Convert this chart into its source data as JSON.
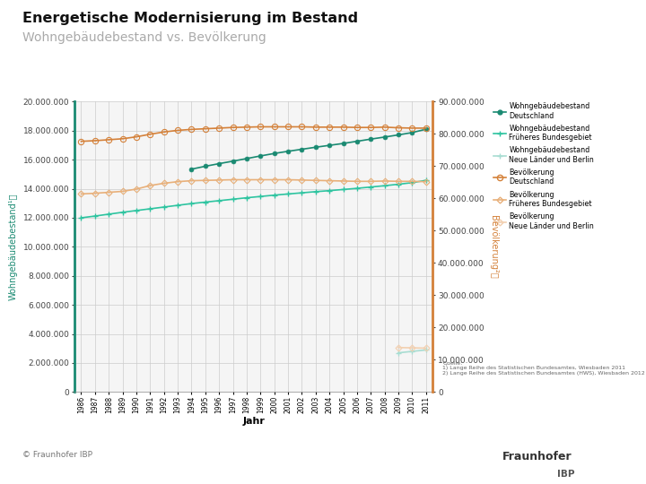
{
  "title1": "Energetische Modernisierung im Bestand",
  "title2": "Wohngebäudebestand vs. Bevölkerung",
  "xlabel": "Jahr",
  "years": [
    1986,
    1987,
    1988,
    1989,
    1990,
    1991,
    1992,
    1993,
    1994,
    1995,
    1996,
    1997,
    1998,
    1999,
    2000,
    2001,
    2002,
    2003,
    2004,
    2005,
    2006,
    2007,
    2008,
    2009,
    2010,
    2011
  ],
  "wgb_deutschland": [
    null,
    null,
    null,
    null,
    null,
    null,
    null,
    null,
    15350000,
    15550000,
    15730000,
    15900000,
    16080000,
    16260000,
    16430000,
    16580000,
    16720000,
    16860000,
    16990000,
    17120000,
    17270000,
    17420000,
    17560000,
    17710000,
    17870000,
    18100000
  ],
  "wgb_frueheres_bg": [
    12000000,
    12120000,
    12250000,
    12380000,
    12500000,
    12620000,
    12740000,
    12860000,
    12980000,
    13080000,
    13180000,
    13280000,
    13380000,
    13470000,
    13560000,
    13640000,
    13720000,
    13800000,
    13870000,
    13950000,
    14030000,
    14120000,
    14210000,
    14310000,
    14420000,
    14580000
  ],
  "wgb_neue_laender": [
    null,
    null,
    null,
    null,
    null,
    null,
    null,
    null,
    null,
    null,
    null,
    null,
    null,
    null,
    null,
    null,
    null,
    null,
    null,
    null,
    null,
    null,
    null,
    2700000,
    2800000,
    2900000
  ],
  "bev_deutschland": [
    77700000,
    77900000,
    78200000,
    78500000,
    79100000,
    79900000,
    80600000,
    81100000,
    81400000,
    81600000,
    81800000,
    82000000,
    82100000,
    82200000,
    82200000,
    82200000,
    82200000,
    82100000,
    82100000,
    82100000,
    82000000,
    82000000,
    82100000,
    81900000,
    81800000,
    81800000
  ],
  "bev_frueheres_bg": [
    61400000,
    61600000,
    61900000,
    62200000,
    62900000,
    64000000,
    64700000,
    65200000,
    65500000,
    65600000,
    65700000,
    65800000,
    65800000,
    65800000,
    65800000,
    65800000,
    65700000,
    65600000,
    65500000,
    65400000,
    65300000,
    65300000,
    65400000,
    65300000,
    65300000,
    65200000
  ],
  "bev_neue_laender": [
    null,
    null,
    null,
    null,
    null,
    null,
    null,
    null,
    null,
    null,
    null,
    null,
    null,
    null,
    null,
    null,
    null,
    null,
    null,
    null,
    null,
    null,
    null,
    13800000,
    13700000,
    13600000
  ],
  "color_wgb_de": "#1a8a72",
  "color_wgb_fbg": "#2ec4a0",
  "color_wgb_nl": "#a8ddd2",
  "color_bev_de": "#d4813a",
  "color_bev_fbg": "#e8b07a",
  "color_bev_nl": "#f2d0b0",
  "ylim_left": [
    0,
    20000000
  ],
  "ylim_right": [
    0,
    90000000
  ],
  "yticks_left": [
    0,
    2000000,
    4000000,
    6000000,
    8000000,
    10000000,
    12000000,
    14000000,
    16000000,
    18000000,
    20000000
  ],
  "yticks_right": [
    0,
    10000000,
    20000000,
    30000000,
    40000000,
    50000000,
    60000000,
    70000000,
    80000000,
    90000000
  ],
  "bg_color": "#ffffff",
  "plot_bg": "#f5f5f5",
  "grid_color": "#cccccc",
  "teal_color": "#1a8a72",
  "orange_color": "#d4813a",
  "footer_text": "© Fraunhofer IBP"
}
